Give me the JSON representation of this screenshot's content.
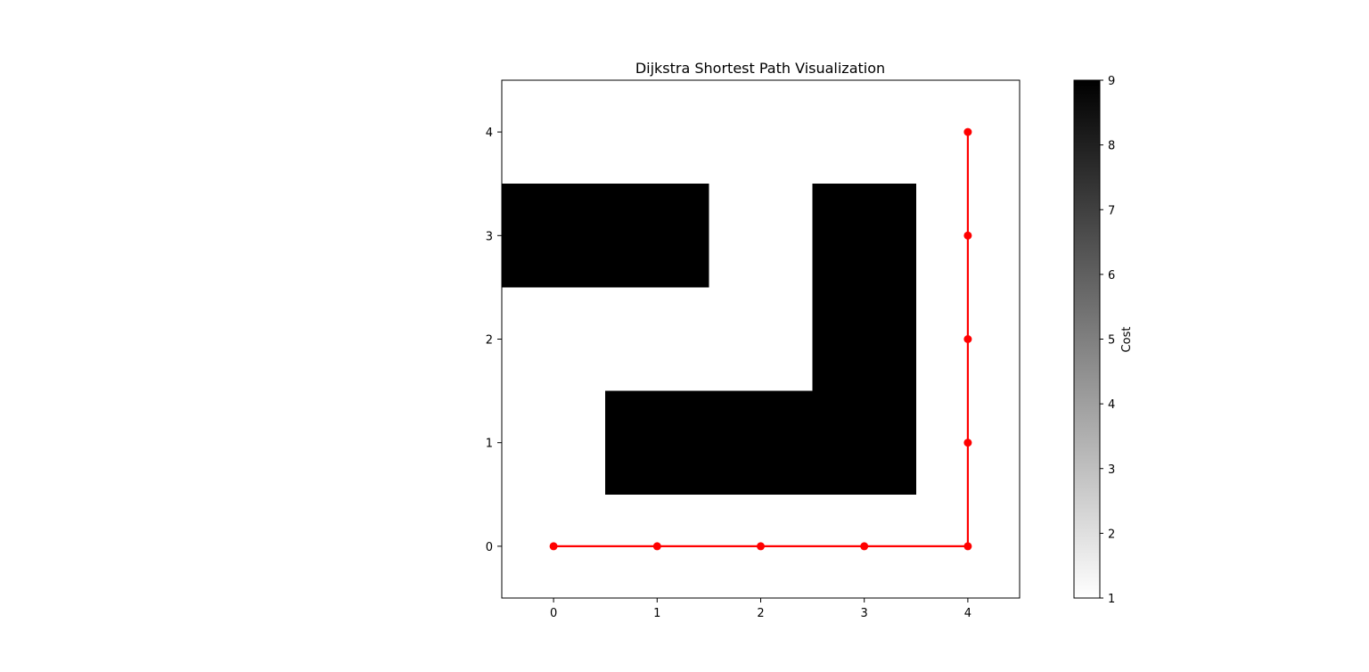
{
  "chart_data": {
    "type": "heatmap",
    "title": "Dijkstra Shortest Path Visualization",
    "xlabel": "",
    "ylabel": "",
    "x_ticks": [
      "0",
      "1",
      "2",
      "3",
      "4"
    ],
    "y_ticks": [
      "0",
      "1",
      "2",
      "3",
      "4"
    ],
    "xlim": [
      -0.5,
      4.5
    ],
    "ylim": [
      -0.5,
      4.5
    ],
    "grid": false,
    "origin": "lower",
    "colormap": "gray_r",
    "grid_values": [
      [
        1,
        1,
        1,
        1,
        1
      ],
      [
        1,
        9,
        9,
        9,
        1
      ],
      [
        1,
        1,
        1,
        9,
        1
      ],
      [
        9,
        9,
        1,
        9,
        1
      ],
      [
        1,
        1,
        1,
        1,
        1
      ]
    ],
    "path": {
      "color": "#ff0000",
      "points": [
        [
          0,
          0
        ],
        [
          1,
          0
        ],
        [
          2,
          0
        ],
        [
          3,
          0
        ],
        [
          4,
          0
        ],
        [
          4,
          1
        ],
        [
          4,
          2
        ],
        [
          4,
          3
        ],
        [
          4,
          4
        ]
      ]
    },
    "colorbar": {
      "label": "Cost",
      "range": [
        1,
        9
      ],
      "ticks": [
        "1",
        "2",
        "3",
        "4",
        "5",
        "6",
        "7",
        "8",
        "9"
      ]
    }
  }
}
